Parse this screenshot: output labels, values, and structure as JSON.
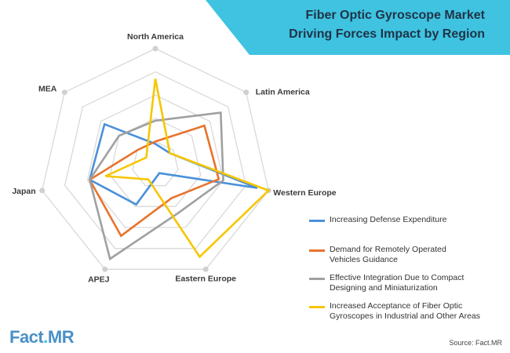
{
  "header": {
    "title_line1": "Fiber Optic Gyroscope Market",
    "title_line2": "Driving Forces Impact by Region",
    "banner_color": "#3fc3e0"
  },
  "chart_data": {
    "type": "radar",
    "axes": [
      "North America",
      "Latin America",
      "Western Europe",
      "Eastern Europe",
      "APEJ",
      "Japan",
      "MEA"
    ],
    "rlim": [
      0,
      5
    ],
    "grid": true,
    "legend_placement": "bottom-right",
    "series": [
      {
        "name": "Increasing Defense Expenditure",
        "color": "#4a90d9",
        "values": [
          0.9,
          0.8,
          4.5,
          0.4,
          1.9,
          2.9,
          2.8
        ]
      },
      {
        "name": "Demand for Remotely Operated Vehicles Guidance",
        "color": "#e8732c",
        "values": [
          1.0,
          2.7,
          2.8,
          1.6,
          3.4,
          2.9,
          1.0
        ]
      },
      {
        "name": "Effective Integration Due to Compact Designing and Miniaturization",
        "color": "#a0a0a0",
        "values": [
          1.9,
          3.6,
          3.0,
          2.3,
          4.5,
          2.9,
          2.0
        ]
      },
      {
        "name": "Increased Acceptance of Fiber Optic Gyroscopes in Industrial and Other Areas",
        "color": "#f6c600",
        "values": [
          3.7,
          0.8,
          5.0,
          4.4,
          0.7,
          2.2,
          0.5
        ]
      }
    ]
  },
  "legend": {
    "items": [
      {
        "label": "Increasing Defense Expenditure",
        "color": "#4a90d9"
      },
      {
        "label": "Demand for Remotely Operated\nVehicles Guidance",
        "color": "#e8732c"
      },
      {
        "label": "Effective Integration Due to Compact\nDesigning and Miniaturization",
        "color": "#a0a0a0"
      },
      {
        "label": "Increased Acceptance of Fiber Optic\nGyroscopes in Industrial and Other Areas",
        "color": "#f6c600"
      }
    ]
  },
  "branding": {
    "logo_fact": "Fact",
    "logo_dot": ".",
    "logo_mr": "MR"
  },
  "footer": {
    "source": "Source: Fact.MR"
  }
}
